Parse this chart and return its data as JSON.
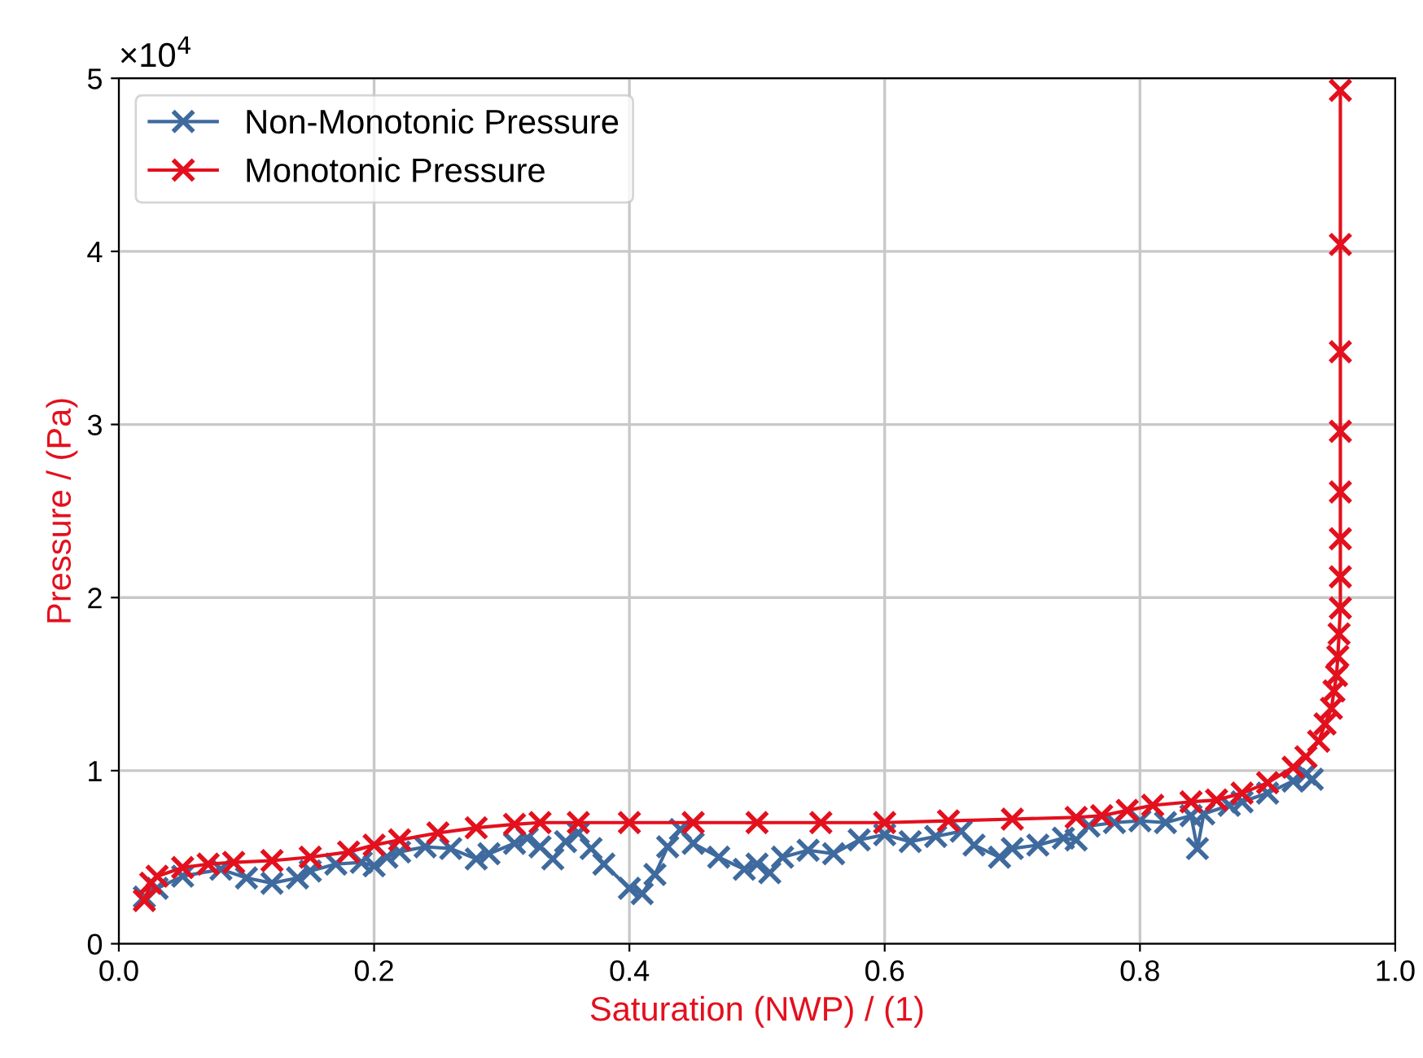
{
  "chart_data": {
    "type": "line",
    "xlabel": "Saturation (NWP) / (1)",
    "ylabel": "Pressure / (Pa)",
    "annotations": [
      "×10$^{4}$"
    ],
    "xlim": [
      0.0,
      1.0
    ],
    "xticks": [
      {
        "value": 0.0,
        "label": "0.0"
      },
      0.2,
      0.4,
      0.6,
      0.8,
      {
        "value": 1.0,
        "label": "1.0"
      }
    ],
    "ylim": [
      0,
      5
    ],
    "yticks": [
      0,
      1,
      2,
      3,
      4,
      5
    ],
    "grid": true,
    "legend": "top left",
    "marker": "cross",
    "line_style": "solid",
    "series": [
      {
        "name": "Non-Monotonic Pressure",
        "color": "#3f6a9e",
        "x": [
          0.02,
          0.03,
          0.05,
          0.08,
          0.1,
          0.12,
          0.14,
          0.15,
          0.17,
          0.19,
          0.2,
          0.21,
          0.22,
          0.24,
          0.26,
          0.28,
          0.29,
          0.31,
          0.32,
          0.33,
          0.34,
          0.35,
          0.36,
          0.37,
          0.38,
          0.4,
          0.41,
          0.42,
          0.43,
          0.44,
          0.45,
          0.47,
          0.49,
          0.5,
          0.51,
          0.52,
          0.54,
          0.56,
          0.58,
          0.6,
          0.62,
          0.64,
          0.66,
          0.67,
          0.69,
          0.7,
          0.72,
          0.74,
          0.75,
          0.76,
          0.78,
          0.8,
          0.82,
          0.84,
          0.845,
          0.85,
          0.87,
          0.88,
          0.9,
          0.92,
          0.93,
          0.935
        ],
        "values": [
          0.27,
          0.32,
          0.39,
          0.43,
          0.38,
          0.35,
          0.38,
          0.42,
          0.46,
          0.47,
          0.45,
          0.5,
          0.53,
          0.56,
          0.55,
          0.49,
          0.52,
          0.58,
          0.61,
          0.56,
          0.49,
          0.59,
          0.64,
          0.55,
          0.46,
          0.32,
          0.29,
          0.4,
          0.56,
          0.66,
          0.58,
          0.5,
          0.43,
          0.46,
          0.41,
          0.5,
          0.54,
          0.52,
          0.6,
          0.63,
          0.59,
          0.62,
          0.65,
          0.57,
          0.5,
          0.55,
          0.57,
          0.61,
          0.6,
          0.68,
          0.7,
          0.71,
          0.7,
          0.74,
          0.55,
          0.75,
          0.8,
          0.82,
          0.87,
          0.94,
          0.98,
          0.95
        ]
      },
      {
        "name": "Monotonic Pressure",
        "color": "#e3101e",
        "x": [
          0.02,
          0.025,
          0.03,
          0.05,
          0.07,
          0.09,
          0.12,
          0.15,
          0.18,
          0.2,
          0.22,
          0.25,
          0.28,
          0.31,
          0.33,
          0.36,
          0.4,
          0.45,
          0.5,
          0.55,
          0.6,
          0.65,
          0.7,
          0.75,
          0.77,
          0.79,
          0.81,
          0.84,
          0.86,
          0.88,
          0.9,
          0.92,
          0.93,
          0.94,
          0.945,
          0.95,
          0.952,
          0.954,
          0.955,
          0.956,
          0.957,
          0.957,
          0.957,
          0.957,
          0.957,
          0.957,
          0.957,
          0.957
        ],
        "values": [
          0.25,
          0.35,
          0.39,
          0.44,
          0.46,
          0.47,
          0.48,
          0.5,
          0.53,
          0.57,
          0.6,
          0.64,
          0.67,
          0.69,
          0.7,
          0.7,
          0.7,
          0.7,
          0.7,
          0.7,
          0.7,
          0.71,
          0.72,
          0.73,
          0.74,
          0.77,
          0.8,
          0.82,
          0.83,
          0.87,
          0.93,
          1.02,
          1.08,
          1.17,
          1.27,
          1.36,
          1.46,
          1.55,
          1.66,
          1.79,
          1.94,
          2.12,
          2.34,
          2.61,
          2.96,
          3.42,
          4.04,
          4.93
        ]
      }
    ]
  }
}
